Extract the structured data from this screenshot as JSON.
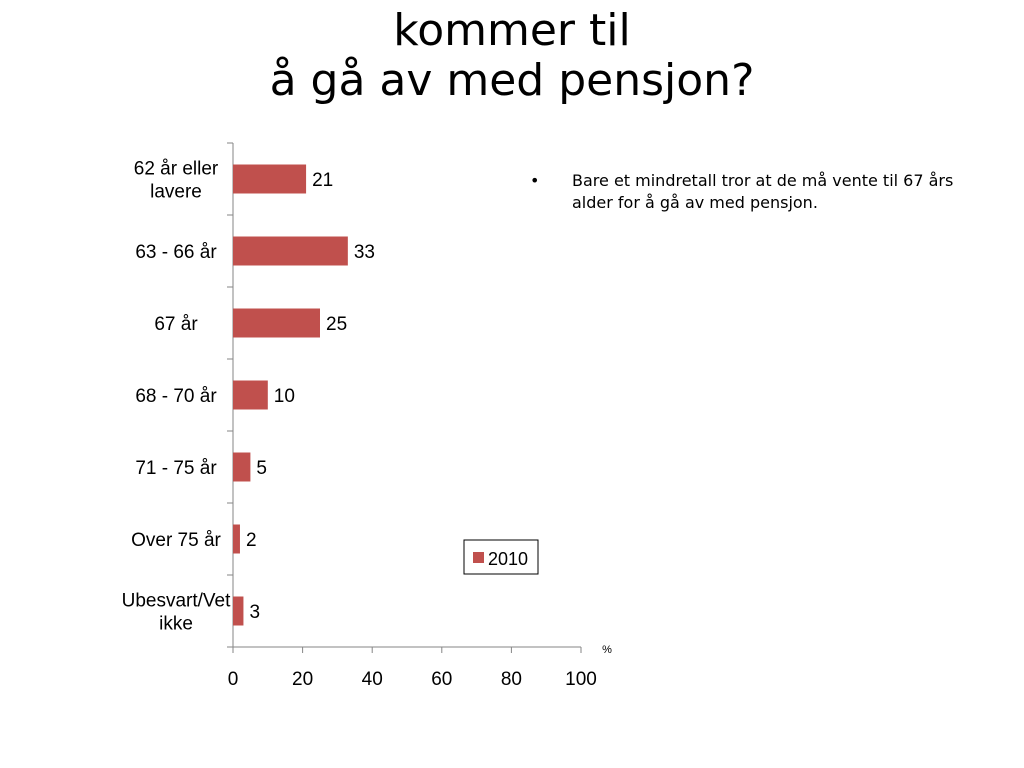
{
  "slide": {
    "title_line1": "kommer til",
    "title_line2": "å gå av med pensjon?",
    "bullet_symbol": "•",
    "bullet_text": "Bare et mindretall tror at de må vente til 67 års alder for å gå av med pensjon."
  },
  "chart_data": {
    "type": "bar",
    "orientation": "horizontal",
    "categories": [
      "62 år eller lavere",
      "63 - 66 år",
      "67 år",
      "68 - 70 år",
      "71 - 75 år",
      "Over 75 år",
      "Ubesvart/Vet ikke"
    ],
    "category_lines": [
      [
        "62 år eller",
        "lavere"
      ],
      [
        "63 - 66 år"
      ],
      [
        "67 år"
      ],
      [
        "68 - 70 år"
      ],
      [
        "71 - 75 år"
      ],
      [
        "Over 75 år"
      ],
      [
        "Ubesvart/Vet",
        "ikke"
      ]
    ],
    "series": [
      {
        "name": "2010",
        "values": [
          21,
          33,
          25,
          10,
          5,
          2,
          3
        ],
        "color": "#c0504d"
      }
    ],
    "xlim": [
      0,
      100
    ],
    "xticks": [
      "0",
      "20",
      "40",
      "60",
      "80",
      "100"
    ],
    "xlabel": "%",
    "data_labels": true,
    "legend": "inside-right",
    "grid": false
  }
}
